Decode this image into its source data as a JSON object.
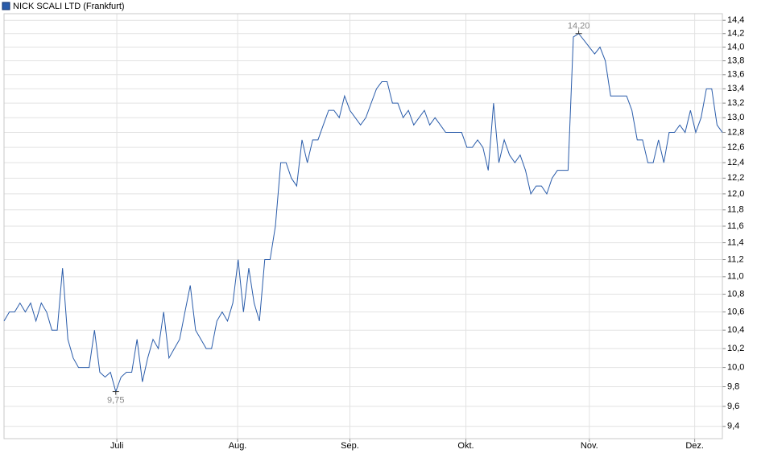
{
  "chart_data": {
    "type": "line",
    "series": [
      {
        "name": "NICK SCALI LTD (Frankfurt)",
        "color": "#2a5caa",
        "values": [
          10.5,
          10.6,
          10.6,
          10.7,
          10.6,
          10.7,
          10.5,
          10.7,
          10.6,
          10.4,
          10.4,
          11.1,
          10.3,
          10.1,
          10.0,
          10.0,
          10.0,
          10.4,
          9.95,
          9.9,
          9.95,
          9.75,
          9.9,
          9.95,
          9.95,
          10.3,
          9.85,
          10.1,
          10.3,
          10.2,
          10.6,
          10.1,
          10.2,
          10.3,
          10.6,
          10.9,
          10.4,
          10.3,
          10.2,
          10.2,
          10.5,
          10.6,
          10.5,
          10.7,
          11.2,
          10.6,
          11.1,
          10.7,
          10.5,
          11.2,
          11.2,
          11.6,
          12.4,
          12.4,
          12.2,
          12.1,
          12.7,
          12.4,
          12.7,
          12.7,
          12.9,
          13.1,
          13.1,
          13.0,
          13.3,
          13.1,
          13.0,
          12.9,
          13.0,
          13.2,
          13.4,
          13.5,
          13.5,
          13.2,
          13.2,
          13.0,
          13.1,
          12.9,
          13.0,
          13.1,
          12.9,
          13.0,
          12.9,
          12.8,
          12.8,
          12.8,
          12.8,
          12.6,
          12.6,
          12.7,
          12.6,
          12.3,
          13.2,
          12.4,
          12.7,
          12.5,
          12.4,
          12.5,
          12.3,
          12.0,
          12.1,
          12.1,
          12.0,
          12.2,
          12.3,
          12.3,
          12.3,
          14.15,
          14.2,
          14.1,
          14.0,
          13.9,
          14.0,
          13.8,
          13.3,
          13.3,
          13.3,
          13.3,
          13.1,
          12.7,
          12.7,
          12.4,
          12.4,
          12.7,
          12.4,
          12.8,
          12.8,
          12.9,
          12.8,
          13.1,
          12.8,
          13.0,
          13.4,
          13.4,
          12.9,
          12.8
        ],
        "value_labels": [
          null,
          null,
          null,
          null,
          null,
          null,
          null,
          null,
          null,
          null,
          null,
          null,
          null,
          null,
          null,
          null,
          null,
          null,
          null,
          null,
          null,
          "9,75",
          null,
          null,
          null,
          null,
          null,
          null,
          null,
          null,
          null,
          null,
          null,
          null,
          null,
          null,
          null,
          null,
          null,
          null,
          null,
          null,
          null,
          null,
          null,
          null,
          null,
          null,
          null,
          null,
          null,
          null,
          null,
          null,
          null,
          null,
          null,
          null,
          null,
          null,
          null,
          null,
          null,
          null,
          null,
          null,
          null,
          null,
          null,
          null,
          null,
          null,
          null,
          null,
          null,
          null,
          null,
          null,
          null,
          null,
          null,
          null,
          null,
          null,
          null,
          null,
          null,
          null,
          null,
          null,
          null,
          null,
          null,
          null,
          null,
          null,
          null,
          null,
          null,
          null,
          null,
          null,
          null,
          null,
          null,
          null,
          null,
          null,
          "14,20",
          null,
          null,
          null,
          null,
          null,
          null,
          null,
          null,
          null,
          null,
          null,
          null,
          null,
          null,
          null,
          null,
          null,
          null,
          null,
          null,
          null,
          null,
          null,
          null,
          null,
          null,
          null
        ]
      }
    ],
    "xticks": [
      {
        "value": 21.2,
        "label": "Juli"
      },
      {
        "value": 43.9,
        "label": "Aug."
      },
      {
        "value": 65,
        "label": "Sep."
      },
      {
        "value": 86.8,
        "label": "Okt."
      },
      {
        "value": 110,
        "label": "Nov."
      },
      {
        "value": 129.8,
        "label": "Dez."
      }
    ],
    "ylim": [
      9.28,
      14.5
    ],
    "log_scale": true,
    "grid": true,
    "yticks": [
      {
        "value": 9.4,
        "label": "9,4"
      },
      {
        "value": 9.6,
        "label": "9,6"
      },
      {
        "value": 9.8,
        "label": "9,8"
      },
      {
        "value": 10.0,
        "label": "10,0"
      },
      {
        "value": 10.2,
        "label": "10,2"
      },
      {
        "value": 10.4,
        "label": "10,4"
      },
      {
        "value": 10.6,
        "label": "10,6"
      },
      {
        "value": 10.8,
        "label": "10,8"
      },
      {
        "value": 11.0,
        "label": "11,0"
      },
      {
        "value": 11.2,
        "label": "11,2"
      },
      {
        "value": 11.4,
        "label": "11,4"
      },
      {
        "value": 11.6,
        "label": "11,6"
      },
      {
        "value": 11.8,
        "label": "11,8"
      },
      {
        "value": 12.0,
        "label": "12,0"
      },
      {
        "value": 12.2,
        "label": "12,2"
      },
      {
        "value": 12.4,
        "label": "12,4"
      },
      {
        "value": 12.6,
        "label": "12,6"
      },
      {
        "value": 12.8,
        "label": "12,8"
      },
      {
        "value": 13.0,
        "label": "13,0"
      },
      {
        "value": 13.2,
        "label": "13,2"
      },
      {
        "value": 13.4,
        "label": "13,4"
      },
      {
        "value": 13.6,
        "label": "13,6"
      },
      {
        "value": 13.8,
        "label": "13,8"
      },
      {
        "value": 14.0,
        "label": "14,0"
      },
      {
        "value": 14.2,
        "label": "14,2"
      },
      {
        "value": 14.4,
        "label": "14,4"
      }
    ]
  }
}
